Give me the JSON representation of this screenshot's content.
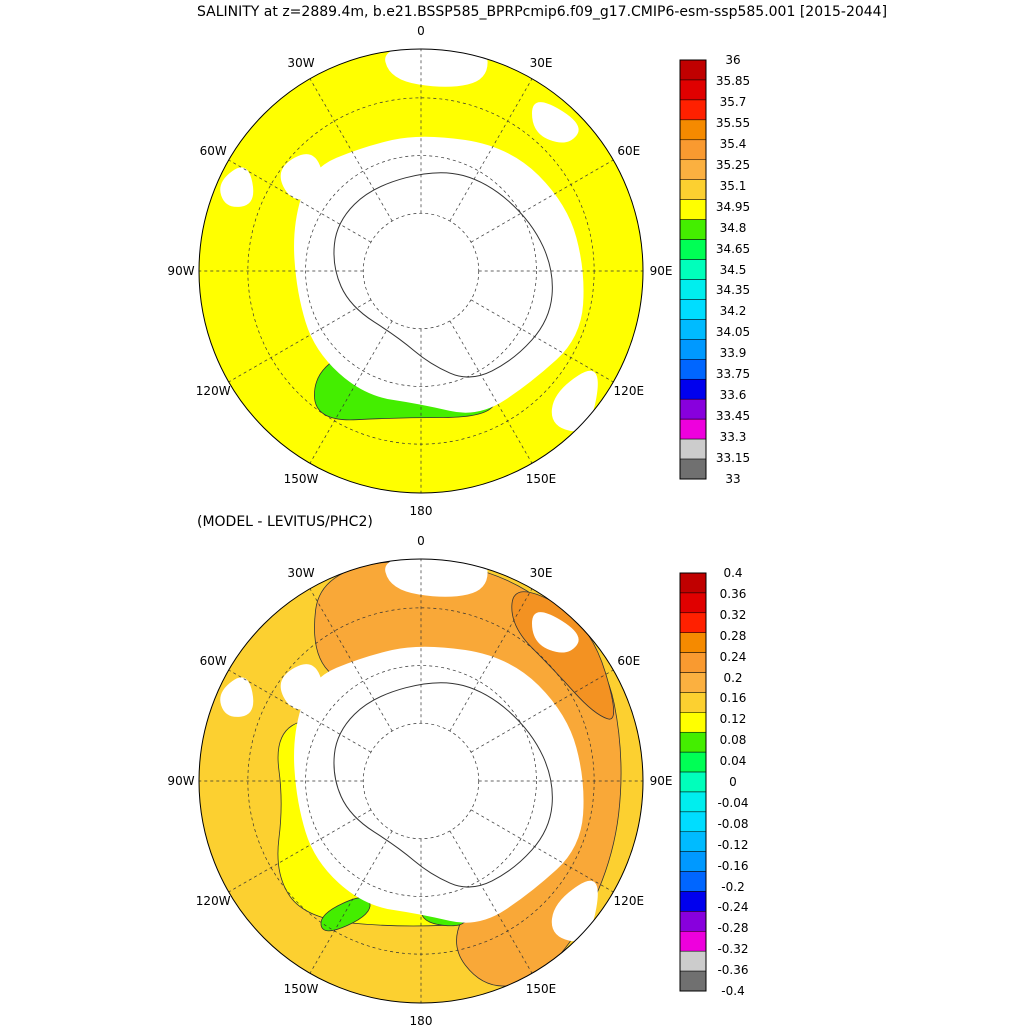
{
  "title_top": "SALINITY at z=2889.4m, b.e21.BSSP585_BPRPcmip6.f09_g17.CMIP6-esm-ssp585.001 [2015-2044]",
  "title_bottom": "(MODEL - LEVITUS/PHC2)",
  "lon_labels": [
    "0",
    "30E",
    "60E",
    "90E",
    "120E",
    "150E",
    "180",
    "150W",
    "120W",
    "90W",
    "60W",
    "30W"
  ],
  "colorbar_top": {
    "labels": [
      "36",
      "35.85",
      "35.7",
      "35.55",
      "35.4",
      "35.25",
      "35.1",
      "34.95",
      "34.8",
      "34.65",
      "34.5",
      "34.35",
      "34.2",
      "34.05",
      "33.9",
      "33.75",
      "33.6",
      "33.45",
      "33.3",
      "33.15",
      "33"
    ]
  },
  "colorbar_bottom": {
    "labels": [
      "0.4",
      "0.36",
      "0.32",
      "0.28",
      "0.24",
      "0.2",
      "0.16",
      "0.12",
      "0.08",
      "0.04",
      "0",
      "-0.04",
      "-0.08",
      "-0.12",
      "-0.16",
      "-0.2",
      "-0.24",
      "-0.28",
      "-0.32",
      "-0.36",
      "-0.4"
    ]
  },
  "palette": [
    "#c00000",
    "#e00000",
    "#ff2000",
    "#f58a00",
    "#f99a30",
    "#fbb040",
    "#fcd030",
    "#ffff00",
    "#44ee00",
    "#00ff55",
    "#00ffbb",
    "#00eeee",
    "#00ddff",
    "#00bbff",
    "#0099ff",
    "#0066ff",
    "#0000ee",
    "#8800dd",
    "#ee00dd",
    "#cccccc",
    "#707070"
  ],
  "colors": {
    "top_background": "#ffff00",
    "top_region": "#44ee00",
    "bottom_background": "#fcd030",
    "bottom_region_orange": "#f9a838",
    "bottom_region_darkorange": "#f39222",
    "bottom_region_yellow": "#ffff00",
    "bottom_region_green": "#44ee00",
    "land": "#ffffff"
  }
}
